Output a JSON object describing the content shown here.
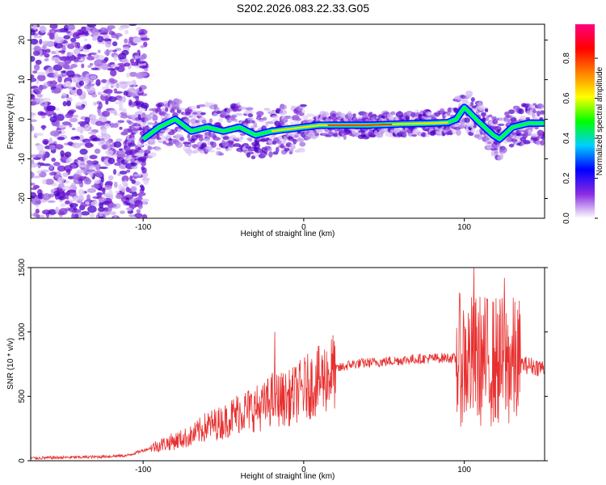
{
  "title": "S202.2026.083.22.33.G05",
  "chart_data": [
    {
      "type": "heatmap",
      "name": "spectrogram",
      "xlabel": "Height of straight line (km)",
      "ylabel": "Frequency (Hz)",
      "xlim": [
        -170,
        150
      ],
      "ylim": [
        -25,
        24
      ],
      "xticks": [
        -100,
        0,
        100
      ],
      "yticks": [
        -20,
        -10,
        0,
        10,
        20
      ],
      "colorbar": {
        "label": "Normalized spectral amplitude",
        "range": [
          0,
          0.97
        ],
        "ticks": [
          "0.0",
          "0.2",
          "0.4",
          "0.6",
          "0.8"
        ],
        "colors": [
          "#ffffff",
          "#8a2be2",
          "#0000ff",
          "#00d0ff",
          "#00ff00",
          "#ffff00",
          "#ff8000",
          "#ff0000",
          "#ff0080"
        ]
      },
      "ridge": [
        {
          "x": -100,
          "y": -5
        },
        {
          "x": -90,
          "y": -2
        },
        {
          "x": -80,
          "y": 0
        },
        {
          "x": -70,
          "y": -3
        },
        {
          "x": -60,
          "y": -2
        },
        {
          "x": -50,
          "y": -3
        },
        {
          "x": -40,
          "y": -2
        },
        {
          "x": -30,
          "y": -4
        },
        {
          "x": -20,
          "y": -3
        },
        {
          "x": -10,
          "y": -2.5
        },
        {
          "x": 0,
          "y": -2
        },
        {
          "x": 10,
          "y": -1.5
        },
        {
          "x": 20,
          "y": -1.5
        },
        {
          "x": 40,
          "y": -1.5
        },
        {
          "x": 60,
          "y": -1.2
        },
        {
          "x": 80,
          "y": -1
        },
        {
          "x": 90,
          "y": -0.8
        },
        {
          "x": 95,
          "y": 0
        },
        {
          "x": 100,
          "y": 3
        },
        {
          "x": 105,
          "y": 1
        },
        {
          "x": 110,
          "y": -1
        },
        {
          "x": 118,
          "y": -4
        },
        {
          "x": 122,
          "y": -5
        },
        {
          "x": 130,
          "y": -2
        },
        {
          "x": 140,
          "y": -1
        },
        {
          "x": 150,
          "y": -1
        }
      ]
    },
    {
      "type": "line",
      "name": "snr",
      "xlabel": "Height of straight line (km)",
      "ylabel": "SNR (10 * v/v)",
      "xlim": [
        -170,
        150
      ],
      "ylim": [
        0,
        1500
      ],
      "xticks": [
        -100,
        0,
        100
      ],
      "yticks": [
        0,
        500,
        1000,
        1500
      ],
      "color": "#e83030",
      "envelope": [
        {
          "x": -170,
          "y": 20
        },
        {
          "x": -130,
          "y": 30
        },
        {
          "x": -110,
          "y": 40
        },
        {
          "x": -90,
          "y": 120
        },
        {
          "x": -70,
          "y": 190
        },
        {
          "x": -60,
          "y": 270
        },
        {
          "x": -50,
          "y": 300
        },
        {
          "x": -40,
          "y": 380
        },
        {
          "x": -25,
          "y": 420
        },
        {
          "x": -20,
          "y": 480
        },
        {
          "x": -10,
          "y": 480
        },
        {
          "x": 0,
          "y": 560
        },
        {
          "x": 10,
          "y": 620
        },
        {
          "x": 20,
          "y": 710
        },
        {
          "x": 30,
          "y": 750
        },
        {
          "x": 50,
          "y": 770
        },
        {
          "x": 70,
          "y": 790
        },
        {
          "x": 90,
          "y": 800
        },
        {
          "x": 95,
          "y": 790
        },
        {
          "x": 100,
          "y": 780
        },
        {
          "x": 110,
          "y": 780
        },
        {
          "x": 130,
          "y": 760
        },
        {
          "x": 150,
          "y": 720
        }
      ],
      "spikes": [
        {
          "x": -18,
          "y": 1000
        },
        {
          "x": 106,
          "y": 1500
        },
        {
          "x": 125,
          "y": 1420
        }
      ]
    }
  ]
}
